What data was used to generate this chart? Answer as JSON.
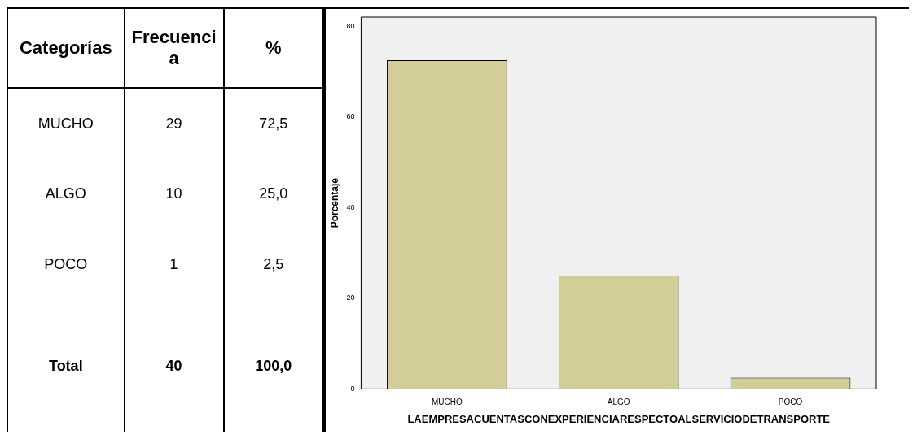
{
  "chart_data": [
    {
      "type": "other",
      "xlabel": "Categorías",
      "data_labels": true,
      "categories": [
        "MUCHO",
        "ALGO",
        "POCO",
        "Total"
      ],
      "series": [
        {
          "name": "Frecuencia",
          "values": [
            29,
            10,
            1,
            40
          ]
        },
        {
          "name": "%",
          "values": [
            72.5,
            25.0,
            2.5,
            100.0
          ],
          "value_labels": [
            "72,5",
            "25,0",
            "2,5",
            "100,0"
          ]
        }
      ]
    },
    {
      "type": "bar",
      "categories": [
        "MUCHO",
        "ALGO",
        "POCO"
      ],
      "values": [
        72.5,
        25.0,
        2.5
      ],
      "color": "#d3ce97",
      "ylim": [
        0,
        82
      ],
      "yticks": [
        0,
        20,
        40,
        60,
        80
      ],
      "ylabel": "Porcentaje",
      "xlabel": "LAEMPRESACUENTASCONEXPERIENCIARESPECTOALSERVICIODETRANSPORTE",
      "grid": false,
      "legend": false
    }
  ]
}
